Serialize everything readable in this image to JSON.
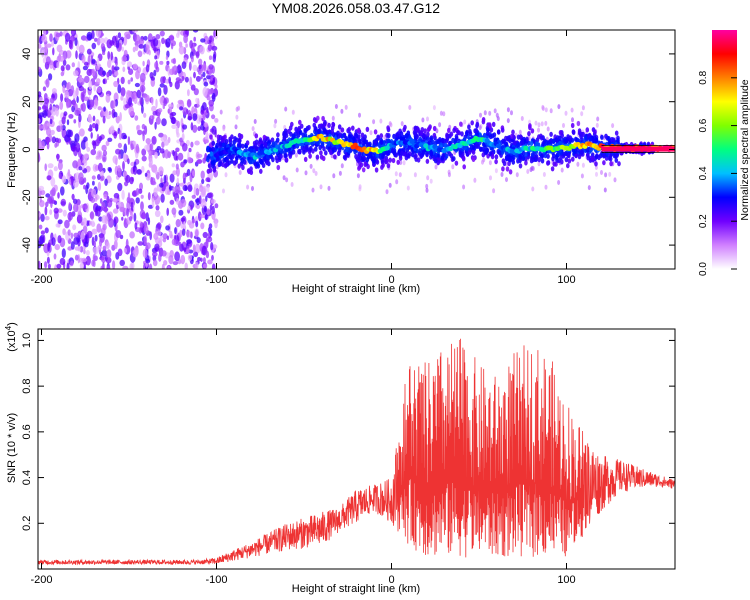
{
  "title": "YM08.2026.058.03.47.G12",
  "chart_data": [
    {
      "type": "heatmap",
      "name": "spectrogram",
      "xlabel": "Height of straight line (km)",
      "ylabel": "Frequency (Hz)",
      "xlim": [
        -202,
        162
      ],
      "ylim": [
        -50,
        50
      ],
      "x_ticks": [
        -200,
        -100,
        0,
        100
      ],
      "y_ticks": [
        -40,
        -20,
        0,
        20,
        40
      ],
      "x_tick_labels": [
        "-200",
        "-100",
        "0",
        "100"
      ],
      "y_tick_labels": [
        "-40",
        "-20",
        "0",
        "20",
        "40"
      ],
      "noise_region_km": [
        -202,
        -100
      ],
      "ridge": {
        "x": [
          -100,
          -90,
          -80,
          -70,
          -60,
          -50,
          -40,
          -30,
          -20,
          -10,
          0,
          10,
          20,
          30,
          40,
          50,
          60,
          70,
          80,
          90,
          100,
          110,
          120,
          130,
          140,
          150,
          160
        ],
        "freq": [
          -2,
          0,
          -3,
          -1,
          2,
          4,
          5,
          3,
          1,
          -1,
          2,
          3,
          1,
          0,
          2,
          5,
          2,
          -1,
          1,
          0,
          1,
          2,
          1,
          0.5,
          0.5,
          0.5,
          0.5
        ],
        "amplitude": [
          0.3,
          0.35,
          0.45,
          0.4,
          0.45,
          0.5,
          0.85,
          0.7,
          0.9,
          0.8,
          0.4,
          0.35,
          0.45,
          0.4,
          0.5,
          0.55,
          0.4,
          0.45,
          0.5,
          0.6,
          0.75,
          0.8,
          0.95,
          1.0,
          1.0,
          1.0,
          1.0
        ]
      },
      "colorbar": {
        "label": "Normalized spectral amplitude",
        "range": [
          0,
          1
        ],
        "ticks": [
          "0.0",
          "0.2",
          "0.4",
          "0.6",
          "0.8"
        ],
        "tick_values": [
          0.0,
          0.2,
          0.4,
          0.6,
          0.8
        ],
        "colors": [
          "#ffffff",
          "#d080ff",
          "#7000ff",
          "#0000ff",
          "#00c0ff",
          "#00ff80",
          "#80ff00",
          "#ffff00",
          "#ff8000",
          "#ff0000",
          "#ff00a0"
        ]
      }
    },
    {
      "type": "line",
      "name": "snr",
      "xlabel": "Height of straight line (km)",
      "ylabel": "SNR (10 * v/v)",
      "scale_note": "(x10",
      "scale_exp": "4",
      "xlim": [
        -202,
        162
      ],
      "ylim": [
        0,
        1.05
      ],
      "x_ticks": [
        -200,
        -100,
        0,
        100
      ],
      "y_ticks": [
        0.2,
        0.4,
        0.6,
        0.8,
        1.0
      ],
      "x_tick_labels": [
        "-200",
        "-100",
        "0",
        "100"
      ],
      "y_tick_labels": [
        "0.2",
        "0.4",
        "0.6",
        "0.8",
        "1.0"
      ],
      "color": "#ee3333",
      "envelope": {
        "x": [
          -202,
          -150,
          -110,
          -100,
          -80,
          -60,
          -40,
          -30,
          -20,
          -10,
          0,
          10,
          20,
          30,
          40,
          50,
          60,
          70,
          80,
          90,
          100,
          110,
          120,
          130,
          140,
          150,
          162
        ],
        "base": [
          0.02,
          0.02,
          0.02,
          0.02,
          0.05,
          0.08,
          0.1,
          0.16,
          0.2,
          0.25,
          0.2,
          0.1,
          0.05,
          0.05,
          0.05,
          0.05,
          0.05,
          0.05,
          0.05,
          0.05,
          0.05,
          0.15,
          0.25,
          0.33,
          0.35,
          0.36,
          0.35
        ],
        "top": [
          0.04,
          0.04,
          0.04,
          0.05,
          0.12,
          0.2,
          0.25,
          0.27,
          0.35,
          0.37,
          0.4,
          0.95,
          0.9,
          0.98,
          1.02,
          0.9,
          0.85,
          0.95,
          1.0,
          0.95,
          0.75,
          0.6,
          0.5,
          0.48,
          0.45,
          0.42,
          0.39
        ]
      }
    }
  ]
}
